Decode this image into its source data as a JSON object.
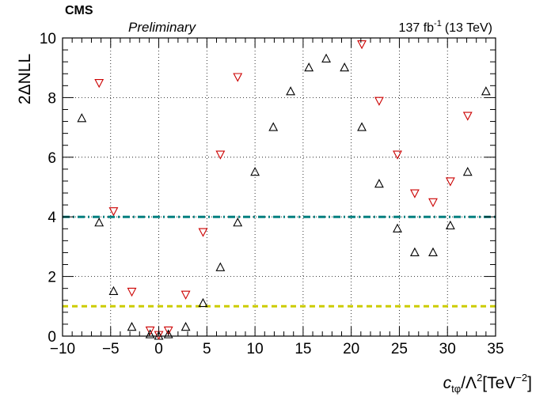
{
  "header": {
    "experiment": "CMS",
    "status": "Preliminary",
    "lumi_value": "137 fb",
    "lumi_exp": "-1",
    "lumi_energy": "(13 TeV)"
  },
  "axes": {
    "y_label": "2ΔNLL",
    "x_label": {
      "c": "c",
      "sub": "tφ",
      "mid": "/Λ",
      "sup2": "2",
      "unit_open": "[TeV",
      "unit_sup": "−2",
      "unit_close": "]"
    }
  },
  "colors": {
    "observed": "#000000",
    "expected": "#cc0000",
    "line_2sigma": "#008080",
    "line_1sigma": "#cccc00"
  },
  "chart_data": {
    "type": "scatter",
    "xlim": [
      -10,
      35
    ],
    "ylim": [
      0,
      10
    ],
    "x_ticks": [
      -10,
      -5,
      0,
      5,
      10,
      15,
      20,
      25,
      30,
      35
    ],
    "y_ticks": [
      0,
      2,
      4,
      6,
      8,
      10
    ],
    "x_tick_labels": [
      "−10",
      "−5",
      "0",
      "5",
      "10",
      "15",
      "20",
      "25",
      "30",
      "35"
    ],
    "y_tick_labels": [
      "0",
      "2",
      "4",
      "6",
      "8",
      "10"
    ],
    "grid": true,
    "series": [
      {
        "marker": "triangle-up-open",
        "color": "#000000",
        "x": [
          -8.0,
          -6.2,
          -4.7,
          -2.8,
          -0.9,
          0.0,
          1.0,
          2.8,
          4.6,
          6.4,
          8.2,
          10.0,
          11.9,
          13.7,
          15.6,
          17.4,
          19.3,
          21.1,
          22.9,
          24.8,
          26.6,
          28.5,
          30.3,
          32.1,
          34.0
        ],
        "y": [
          7.3,
          3.8,
          1.5,
          0.3,
          0.05,
          0.0,
          0.05,
          0.3,
          1.1,
          2.3,
          3.8,
          5.5,
          7.0,
          8.2,
          9.0,
          9.3,
          9.0,
          7.0,
          5.1,
          3.6,
          2.8,
          2.8,
          3.7,
          5.5,
          8.2
        ]
      },
      {
        "marker": "triangle-down-open",
        "color": "#cc0000",
        "x": [
          -6.2,
          -4.7,
          -2.8,
          -0.9,
          0.0,
          1.0,
          2.8,
          4.6,
          6.4,
          8.2,
          21.1,
          22.9,
          24.8,
          26.6,
          28.5,
          30.3,
          32.1
        ],
        "y": [
          8.5,
          4.2,
          1.5,
          0.2,
          0.05,
          0.2,
          1.4,
          3.5,
          6.1,
          8.7,
          9.8,
          7.9,
          6.1,
          4.8,
          4.5,
          5.2,
          7.4
        ]
      }
    ],
    "reference_lines": [
      {
        "y": 4.0,
        "style": "dash-dot",
        "color": "#008080"
      },
      {
        "y": 1.0,
        "style": "dashed",
        "color": "#cccc00"
      }
    ]
  }
}
